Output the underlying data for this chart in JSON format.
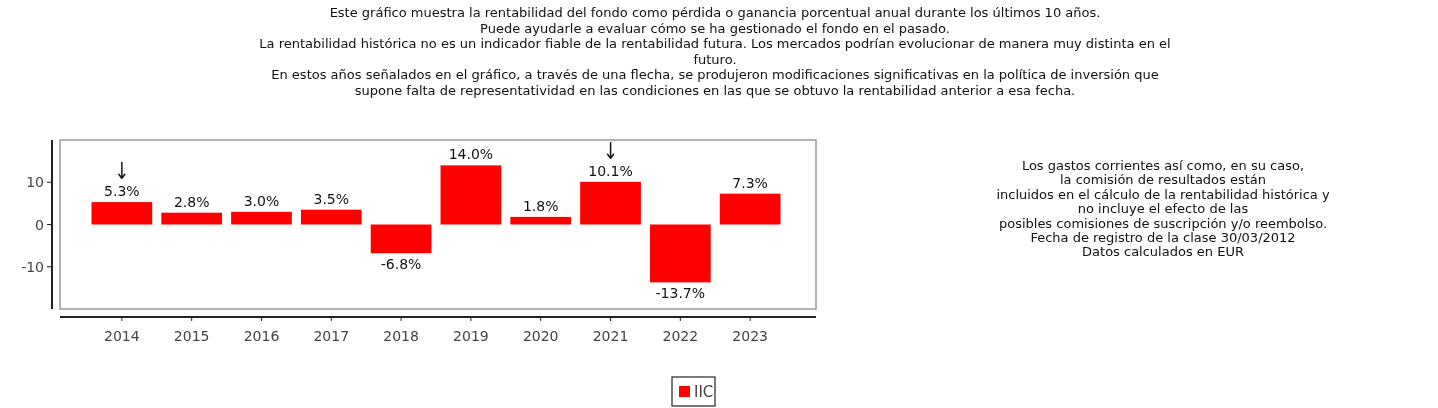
{
  "chart_data": {
    "type": "bar",
    "title": "Este gráfico muestra la rentabilidad del fondo como pérdida o ganancia porcentual anual durante los últimos 10 años.\nPuede ayudarle a evaluar cómo se ha gestionado el fondo en el pasado.\nLa rentabilidad histórica no es un indicador fiable de la rentabilidad futura. Los mercados podrían evolucionar de manera muy distinta en el\nfuturo.\nEn estos años señalados en el gráfico, a través de una flecha, se produjeron modificaciones significativas en la política de inversión que\nsupone falta de representatividad en las condiciones en las que se obtuvo la rentabilidad anterior a esa fecha.",
    "categories": [
      "2014",
      "2015",
      "2016",
      "2017",
      "2018",
      "2019",
      "2020",
      "2021",
      "2022",
      "2023"
    ],
    "series": [
      {
        "name": "IIC",
        "color": "#ff0000",
        "values": [
          5.3,
          2.8,
          3.0,
          3.5,
          -6.8,
          14.0,
          1.8,
          10.1,
          -13.7,
          7.3
        ],
        "value_labels": [
          "5.3%",
          "2.8%",
          "3.0%",
          "3.5%",
          "-6.8%",
          "14.0%",
          "1.8%",
          "10.1%",
          "-13.7%",
          "7.3%"
        ]
      }
    ],
    "ylim": [
      -20,
      20
    ],
    "yticks": [
      -10,
      0,
      10
    ],
    "grid": false,
    "legend": "bottom",
    "annotations": [
      {
        "text": "↓",
        "x": "2014",
        "y": 5.3
      },
      {
        "text": "↓",
        "x": "2021",
        "y": 10.1
      },
      "Los gastos corrientes así como, en su caso,\nla comisión de resultados están\nincluidos en el cálculo de la rentabilidad histórica y\nno incluye el efecto de las\nposibles comisiones de suscripción y/o reembolso.\nFecha de registro de la clase 30/03/2012\nDatos calculados en EUR"
    ]
  }
}
